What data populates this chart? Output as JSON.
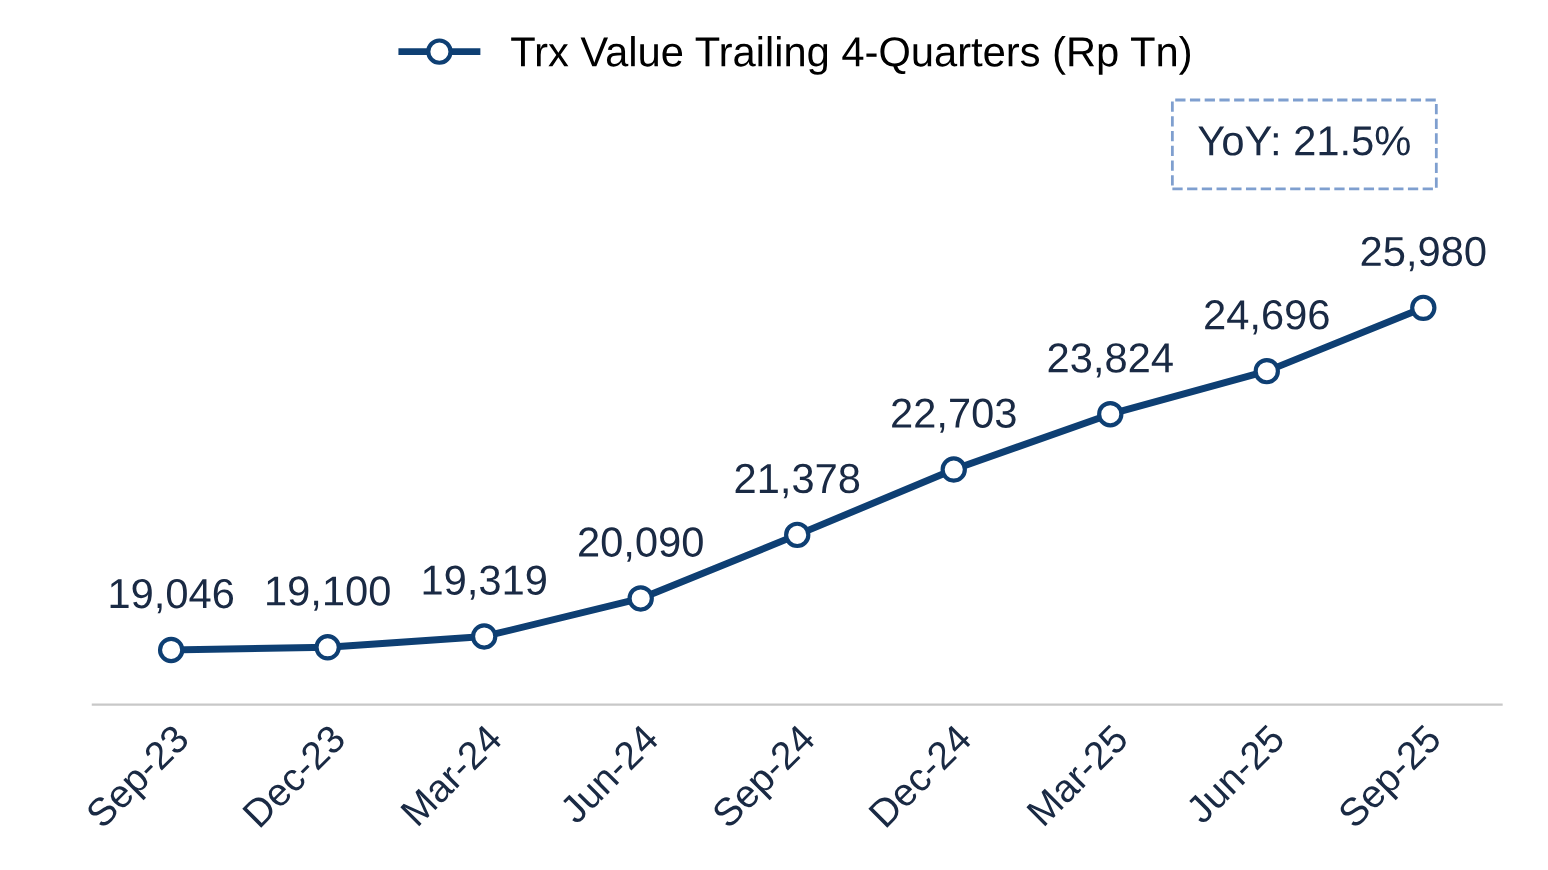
{
  "chart_data": {
    "type": "line",
    "categories": [
      "Sep-23",
      "Dec-23",
      "Mar-24",
      "Jun-24",
      "Sep-24",
      "Dec-24",
      "Mar-25",
      "Jun-25",
      "Sep-25"
    ],
    "series": [
      {
        "name": "Trx Value Trailing 4-Quarters (Rp Tn)",
        "color": "#0e3f73",
        "values": [
          19046,
          19100,
          19319,
          20090,
          21378,
          22703,
          23824,
          24696,
          25980
        ],
        "value_labels": [
          "19,046",
          "19,100",
          "19,319",
          "20,090",
          "21,378",
          "22,703",
          "23,824",
          "24,696",
          "25,980"
        ]
      }
    ],
    "annotations": [
      "YoY: 21.5%"
    ],
    "marker": "circle",
    "line_style": "solid",
    "legend": "top",
    "grid": false,
    "tick_labels": "x"
  }
}
